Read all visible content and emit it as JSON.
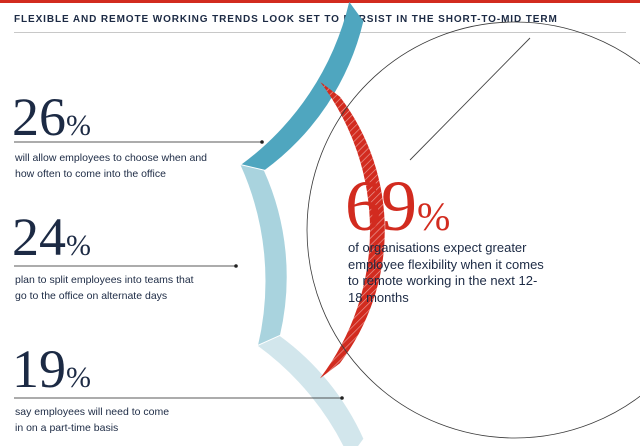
{
  "header": {
    "title": "FLEXIBLE AND REMOTE WORKING TRENDS LOOK SET TO PERSIST IN THE SHORT-TO-MID TERM"
  },
  "chart_data": {
    "type": "donut",
    "title": "FLEXIBLE AND REMOTE WORKING TRENDS LOOK SET TO PERSIST IN THE SHORT-TO-MID TERM",
    "series": [
      {
        "value": 26,
        "value_label": "26",
        "unit": "%",
        "label": "will allow employees to choose when and how often to come into the office",
        "color": "#4fa6bf"
      },
      {
        "value": 24,
        "value_label": "24",
        "unit": "%",
        "label": "plan to split employees into teams that go to the office on alternate days",
        "color": "#a9d3de"
      },
      {
        "value": 19,
        "value_label": "19",
        "unit": "%",
        "label": "say employees will need to come in on a part-time basis",
        "color": "#d2e6ec"
      }
    ],
    "headline": {
      "value": 69,
      "value_label": "69",
      "unit": "%",
      "label": "of organisations expect greater employee flexibility when it comes to remote working in the next 12-18 months",
      "color": "#d22b1f"
    }
  }
}
